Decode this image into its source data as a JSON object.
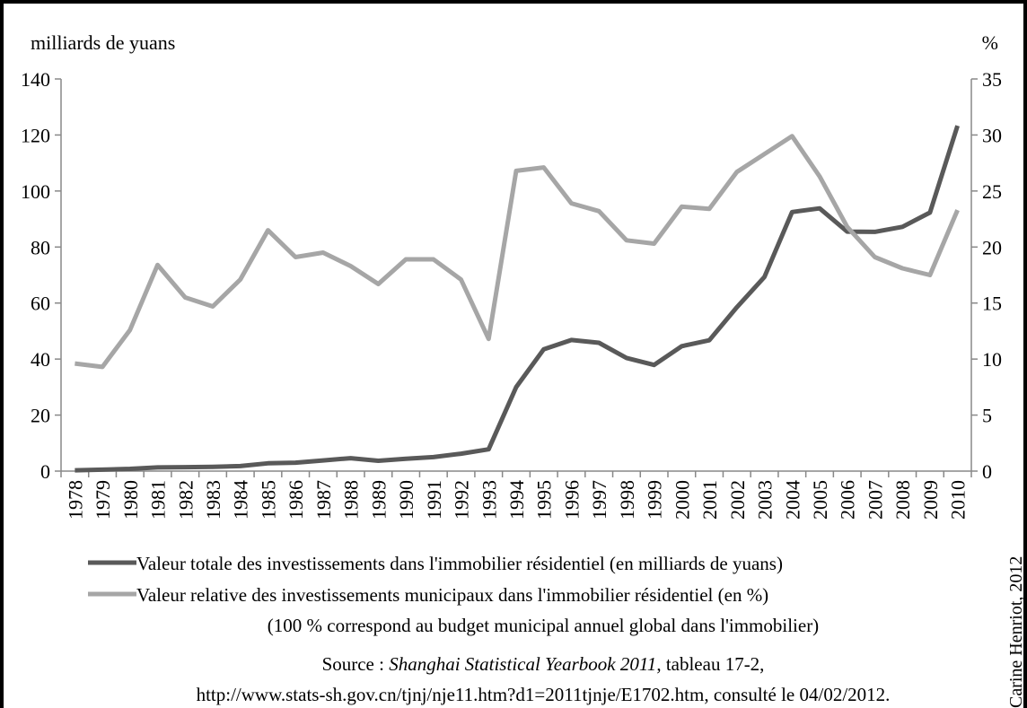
{
  "chart_data": {
    "type": "line",
    "y_label": "milliards de yuans",
    "y2_label": "%",
    "categories": [
      "1978",
      "1979",
      "1980",
      "1981",
      "1982",
      "1983",
      "1984",
      "1985",
      "1986",
      "1987",
      "1988",
      "1989",
      "1990",
      "1991",
      "1992",
      "1993",
      "1994",
      "1995",
      "1996",
      "1997",
      "1998",
      "1999",
      "2000",
      "2001",
      "2002",
      "2003",
      "2004",
      "2005",
      "2006",
      "2007",
      "2008",
      "2009",
      "2010"
    ],
    "series": [
      {
        "name": "Valeur totale des investissements dans l'immobilier résidentiel (en milliards de yuans)",
        "color": "#595959",
        "values": [
          0.3,
          0.5,
          0.8,
          1.3,
          1.4,
          1.5,
          1.8,
          2.8,
          3.0,
          3.8,
          4.6,
          3.7,
          4.4,
          5.0,
          6.2,
          7.8,
          30,
          43.5,
          46.8,
          45.8,
          40.4,
          37.9,
          44.6,
          46.7,
          58.5,
          69.3,
          92.5,
          93.8,
          85.5,
          85.4,
          87.2,
          92.3,
          123.3
        ]
      },
      {
        "name": "Valeur relative des investissements municipaux dans l'immobilier résidentiel (en %)",
        "color": "#a6a6a6",
        "axis": "y2",
        "values": [
          9.6,
          9.3,
          12.6,
          18.4,
          15.5,
          14.7,
          17.1,
          21.5,
          19.1,
          19.5,
          18.3,
          16.7,
          18.9,
          18.9,
          17.1,
          11.8,
          26.8,
          27.1,
          23.9,
          23.2,
          20.6,
          20.3,
          23.6,
          23.4,
          26.7,
          28.3,
          29.9,
          26.3,
          21.8,
          19.1,
          18.1,
          17.5,
          23.3
        ]
      }
    ],
    "ylim": [
      0,
      140
    ],
    "yticks": [
      0,
      20,
      40,
      60,
      80,
      100,
      120,
      140
    ],
    "y2lim": [
      0,
      35
    ],
    "y2ticks": [
      0,
      5,
      10,
      15,
      20,
      25,
      30,
      35
    ],
    "note": "(100 % correspond au budget municipal annuel global dans l'immobilier)",
    "source": {
      "prefix": "Source : ",
      "title": "Shanghai Statistical Yearbook 2011",
      "suffix": ", tableau 17-2,",
      "url": "http://www.stats-sh.gov.cn/tjnj/nje11.htm?d1=2011tjnje/E1702.htm, consulté le 04/02/2012."
    },
    "credit": "Carine Henriot, 2012"
  }
}
